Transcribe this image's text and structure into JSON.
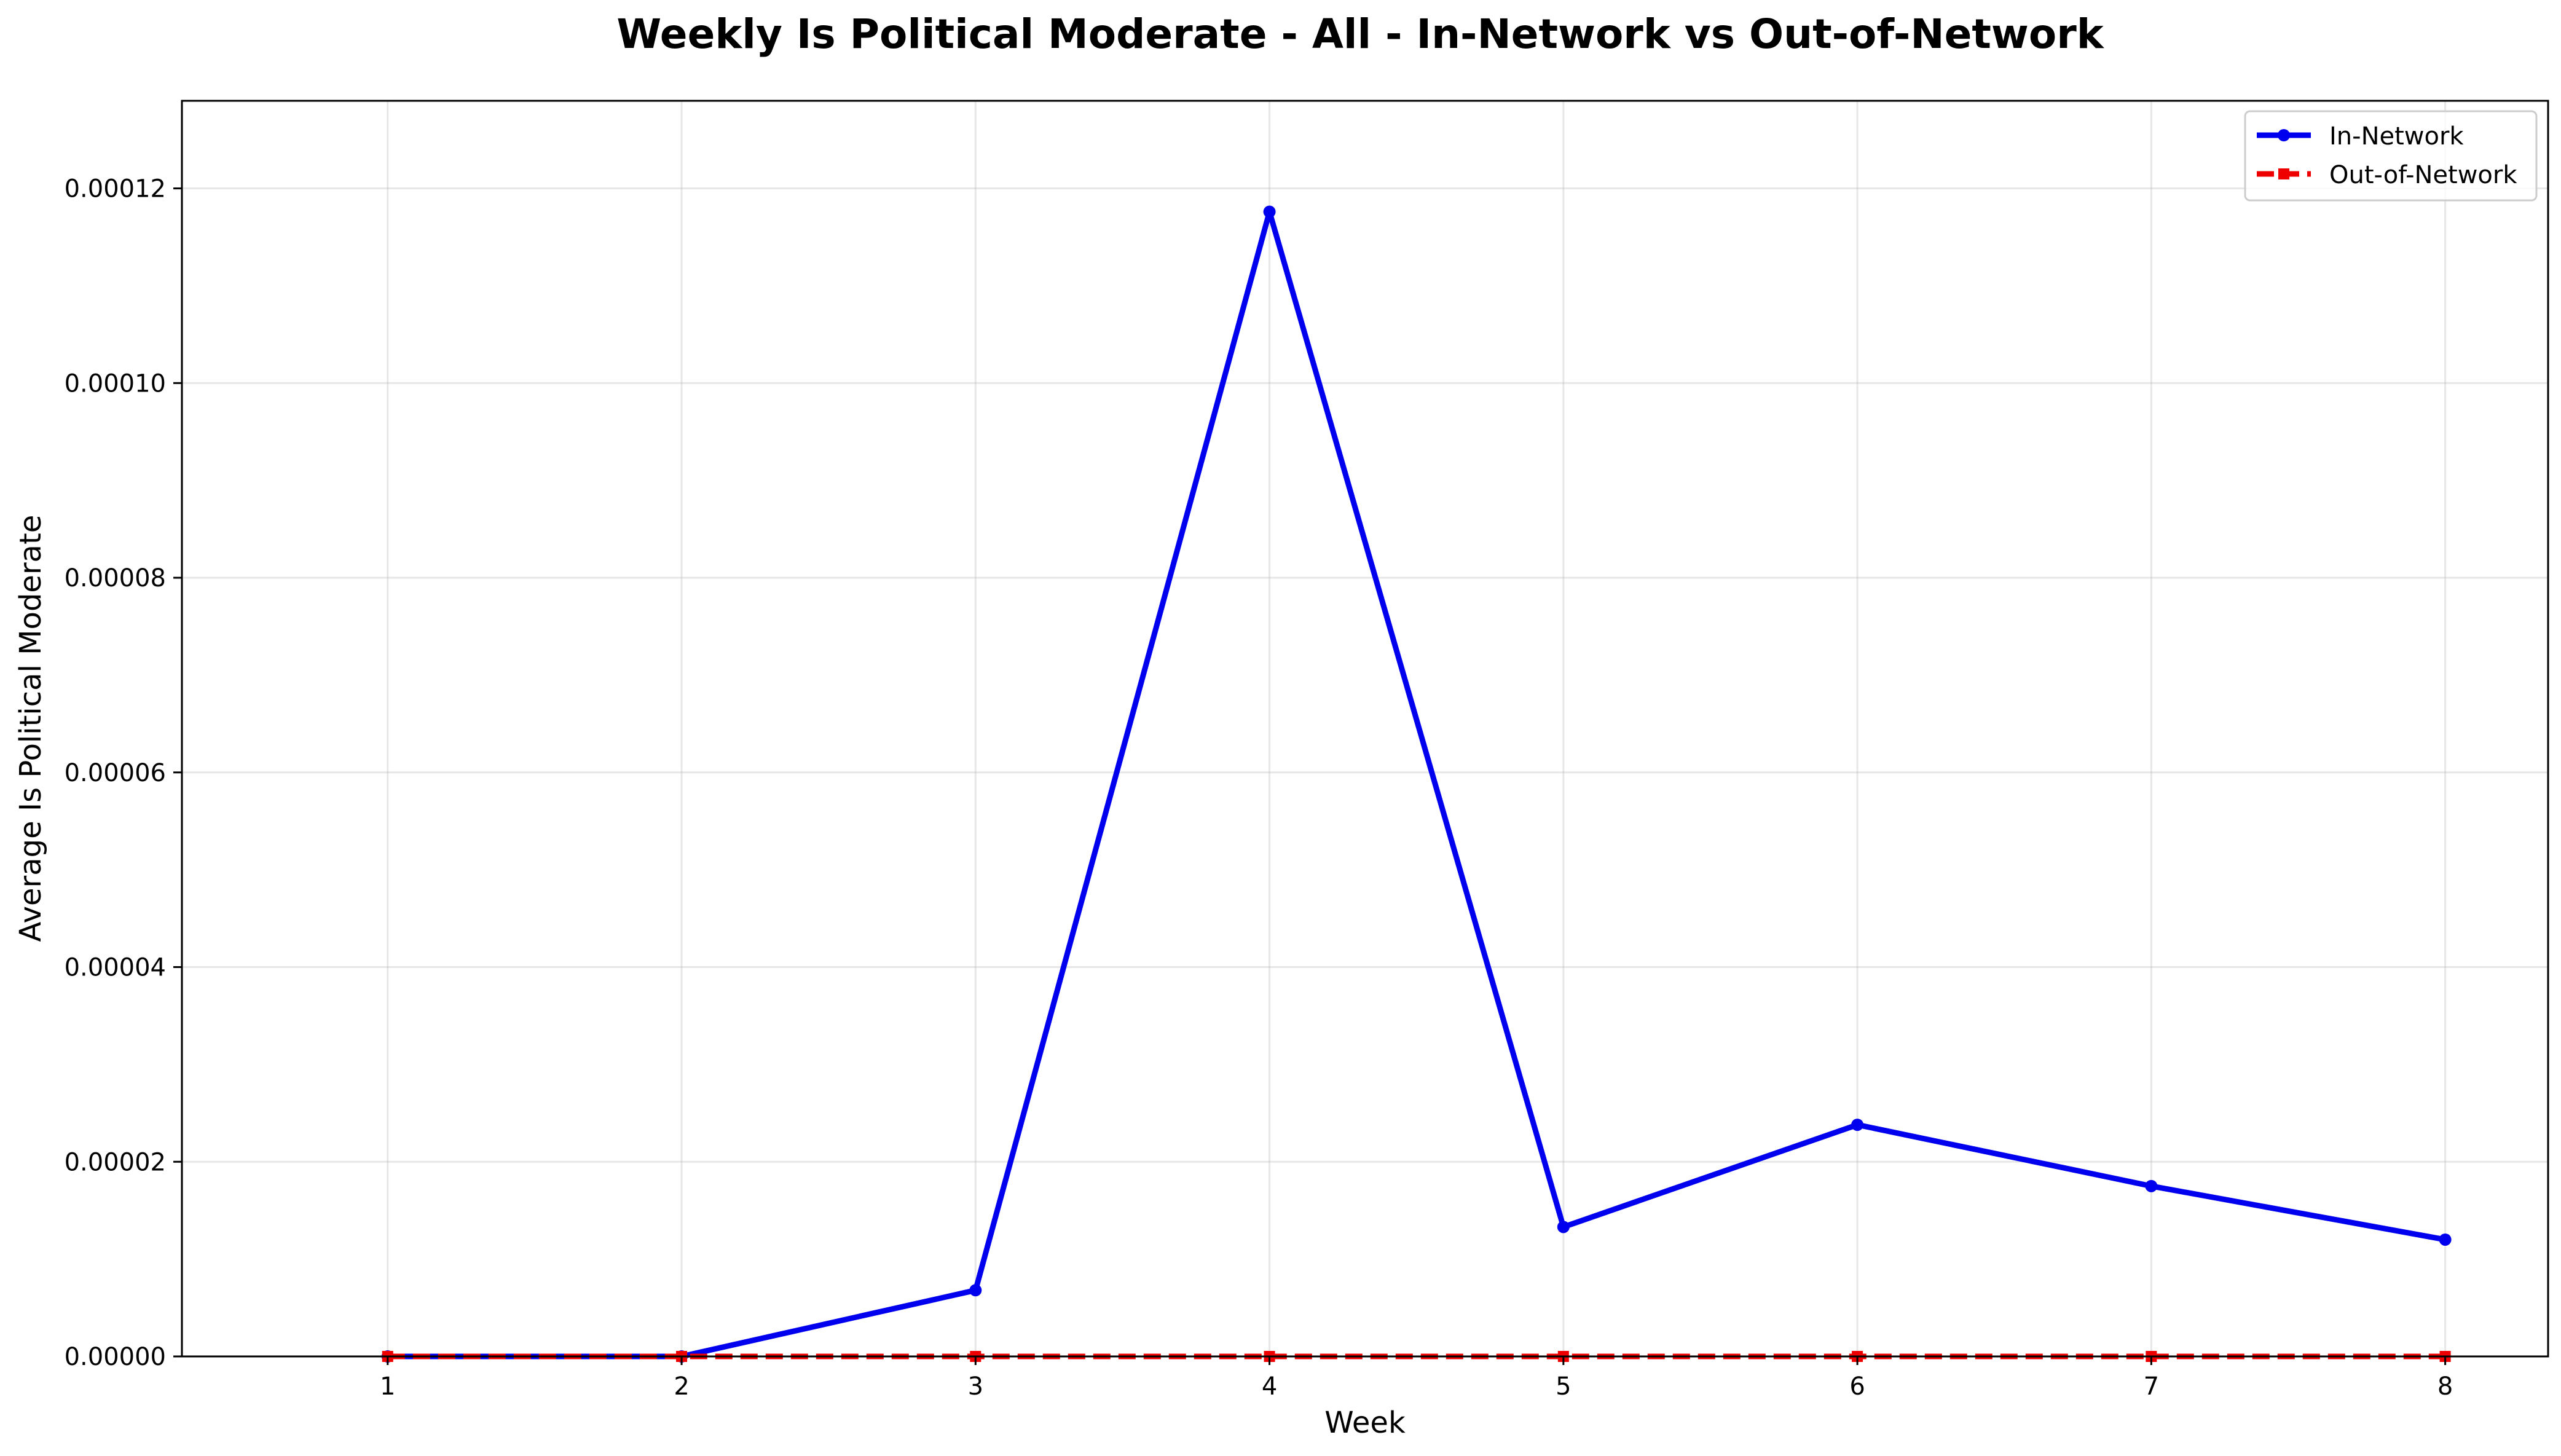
{
  "chart_data": {
    "type": "line",
    "title": "Weekly Is Political Moderate - All - In-Network vs Out-of-Network",
    "xlabel": "Week",
    "ylabel": "Average Is Political Moderate",
    "x": [
      1,
      2,
      3,
      4,
      5,
      6,
      7,
      8
    ],
    "xlim": [
      0.3,
      8.35
    ],
    "ylim": [
      0,
      0.000129
    ],
    "xticks": [
      "1",
      "2",
      "3",
      "4",
      "5",
      "6",
      "7",
      "8"
    ],
    "yticks": [
      0,
      2e-05,
      4e-05,
      6e-05,
      8e-05,
      0.0001,
      0.00012
    ],
    "ytick_labels": [
      "0.00000",
      "0.00002",
      "0.00004",
      "0.00006",
      "0.00008",
      "0.00010",
      "0.00012"
    ],
    "grid": true,
    "legend_position": "top-right",
    "series": [
      {
        "name": "In-Network",
        "color": "#0000ee",
        "line_style": "solid",
        "marker": "circle",
        "values": [
          0,
          0,
          6.8e-06,
          0.0001176,
          1.33e-05,
          2.38e-05,
          1.75e-05,
          1.2e-05
        ]
      },
      {
        "name": "Out-of-Network",
        "color": "#ee0000",
        "line_style": "dashed",
        "marker": "square",
        "values": [
          0,
          0,
          0,
          0,
          0,
          0,
          0,
          0
        ]
      }
    ]
  }
}
